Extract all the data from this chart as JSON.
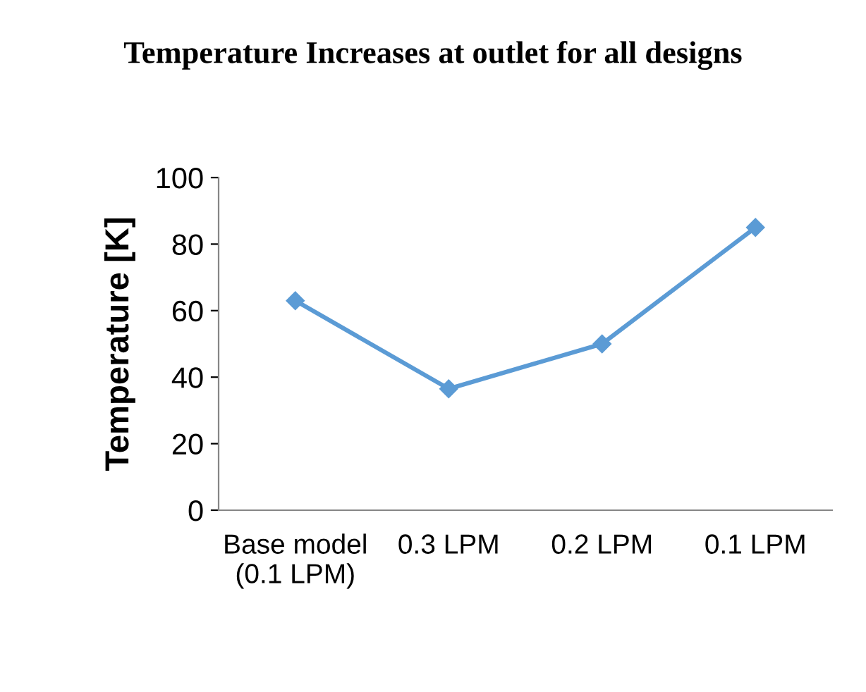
{
  "chart_data": {
    "type": "line",
    "title": "Temperature Increases at outlet for all designs",
    "ylabel": "Temperature [K]",
    "categories": [
      "Base model (0.1 LPM)",
      "0.3 LPM",
      "0.2 LPM",
      "0.1 LPM"
    ],
    "series": [
      {
        "color": "#5b9bd5",
        "values": [
          63,
          36.5,
          50,
          85
        ]
      }
    ],
    "ylim": [
      0,
      100
    ],
    "yticks": [
      0,
      20,
      40,
      60,
      80,
      100
    ],
    "grid": false,
    "legend": false,
    "marker": "diamond",
    "line_style": "solid"
  }
}
